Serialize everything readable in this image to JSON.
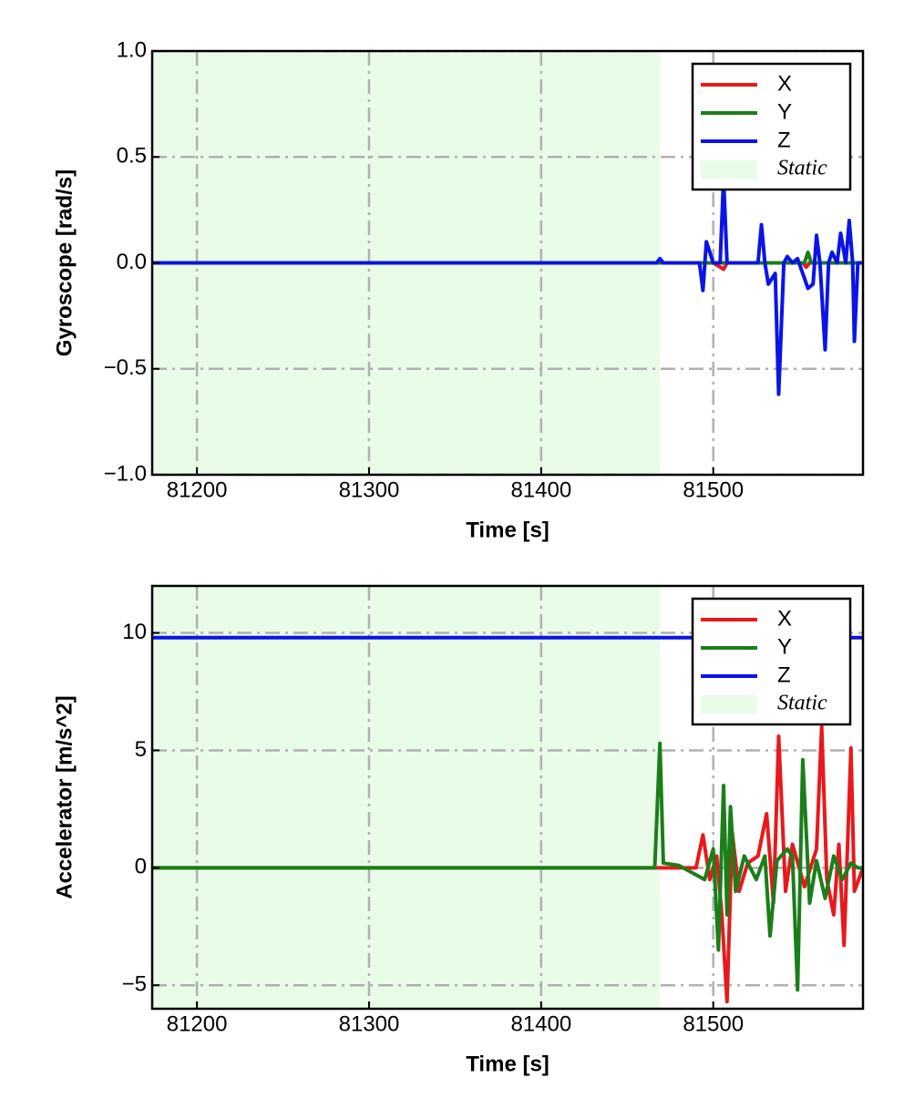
{
  "chart_data": [
    {
      "type": "line",
      "x_label": "Time [s]",
      "y_label": "Gyroscope [rad/s]",
      "xlim": [
        81174,
        81587
      ],
      "xticks": [
        81200,
        81300,
        81400,
        81500
      ],
      "ylim": [
        -1,
        1
      ],
      "yticks": [
        {
          "value": -1,
          "label": "−1.0"
        },
        {
          "value": -0.5,
          "label": "−0.5"
        },
        {
          "value": 0,
          "label": "0.0"
        },
        0.5,
        {
          "value": 1,
          "label": "1.0"
        }
      ],
      "grid": true,
      "legend": "upper right",
      "spans": [
        {
          "name": "Static",
          "color": "#e8fce8",
          "start": 81174,
          "end": 81469
        }
      ],
      "series": [
        {
          "name": "X",
          "color": "#e8191c",
          "x": [
            81174,
            81500,
            81506,
            81508,
            81552,
            81554,
            81556,
            81587
          ],
          "values": [
            0,
            0,
            -0.03,
            0,
            0,
            -0.02,
            0,
            0
          ]
        },
        {
          "name": "Y",
          "color": "#1a7f1a",
          "x": [
            81174,
            81553,
            81555,
            81557,
            81587
          ],
          "values": [
            0,
            0,
            0.05,
            0,
            0
          ]
        },
        {
          "name": "Z",
          "color": "#0a14e6",
          "x": [
            81174,
            81467,
            81469,
            81471,
            81492,
            81494,
            81496,
            81500,
            81504,
            81506,
            81508,
            81512,
            81526,
            81528,
            81530,
            81532,
            81536,
            81538,
            81541,
            81543,
            81546,
            81549,
            81552,
            81555,
            81558,
            81560,
            81562,
            81565,
            81567,
            81569,
            81572,
            81574,
            81577,
            81579,
            81581,
            81582,
            81584,
            81587
          ],
          "values": [
            0,
            0,
            0.02,
            0,
            0,
            -0.13,
            0.1,
            0,
            0,
            0.4,
            0,
            0,
            0,
            0.18,
            0,
            -0.1,
            -0.05,
            -0.62,
            0,
            0.03,
            0,
            0.02,
            -0.05,
            -0.12,
            -0.1,
            0.13,
            0,
            -0.41,
            0,
            0.05,
            0,
            0.14,
            0,
            0.2,
            0,
            -0.37,
            0,
            0
          ]
        }
      ]
    },
    {
      "type": "line",
      "x_label": "Time [s]",
      "y_label": "Accelerator [m/s^2]",
      "xlim": [
        81174,
        81587
      ],
      "xticks": [
        81200,
        81300,
        81400,
        81500
      ],
      "ylim": [
        -6,
        12
      ],
      "yticks": [
        {
          "value": -5,
          "label": "−5"
        },
        0,
        5,
        10
      ],
      "grid": true,
      "legend": "upper right",
      "spans": [
        {
          "name": "Static",
          "color": "#e8fce8",
          "start": 81174,
          "end": 81469
        }
      ],
      "series": [
        {
          "name": "X",
          "color": "#e8191c",
          "x": [
            81174,
            81490,
            81494,
            81498,
            81502,
            81505,
            81508,
            81511,
            81515,
            81520,
            81526,
            81531,
            81535,
            81538,
            81542,
            81546,
            81553,
            81560,
            81563,
            81566,
            81570,
            81573,
            81576,
            81580,
            81582,
            81587
          ],
          "values": [
            0,
            0,
            1.4,
            -0.5,
            0.5,
            -2,
            -5.7,
            1.5,
            -1,
            0.2,
            0.5,
            2.3,
            -1.5,
            5.6,
            -1,
            1,
            -0.8,
            0.8,
            6,
            -0.5,
            -2,
            1,
            -3.3,
            5.1,
            -1,
            0
          ]
        },
        {
          "name": "Y",
          "color": "#1a7f1a",
          "x": [
            81174,
            81466,
            81469,
            81471,
            81480,
            81495,
            81500,
            81503,
            81506,
            81508,
            81510,
            81513,
            81518,
            81525,
            81530,
            81533,
            81537,
            81543,
            81546,
            81549,
            81552,
            81556,
            81560,
            81565,
            81570,
            81575,
            81580,
            81584,
            81587
          ],
          "values": [
            0,
            0,
            5.3,
            0.2,
            0.1,
            -0.5,
            0.8,
            -3.5,
            3.5,
            -2,
            2.6,
            -1,
            0.5,
            -0.5,
            0.5,
            -2.9,
            0.3,
            0.8,
            0.5,
            -5.2,
            4.6,
            -1.5,
            0.3,
            -1.3,
            0.5,
            -0.5,
            0.2,
            0,
            0
          ]
        },
        {
          "name": "Z",
          "color": "#0a14e6",
          "x": [
            81174,
            81587
          ],
          "values": [
            9.8,
            9.8
          ]
        }
      ]
    }
  ]
}
